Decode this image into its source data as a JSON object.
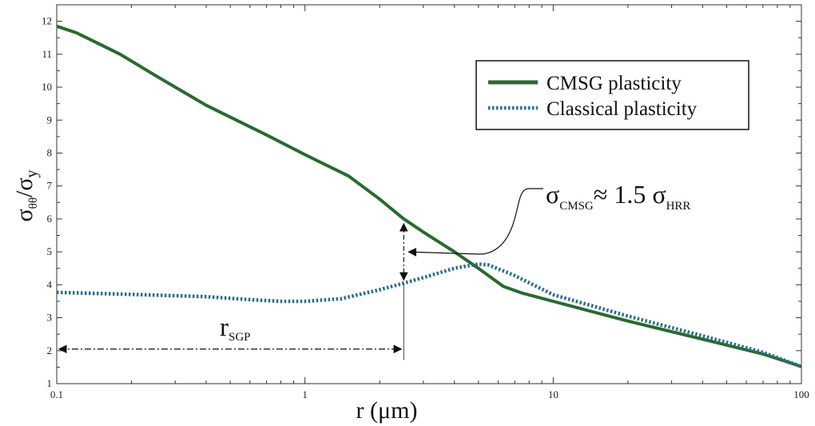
{
  "chart_data": {
    "type": "line",
    "xscale": "log",
    "xlim": [
      0.1,
      100
    ],
    "ylim": [
      1,
      12.5
    ],
    "xticks": [
      "0.1",
      "1",
      "10",
      "100"
    ],
    "yticks": [
      "1",
      "2",
      "3",
      "4",
      "5",
      "6",
      "7",
      "8",
      "9",
      "10",
      "11",
      "12"
    ],
    "xlabel": "r (μm)",
    "ylabel": {
      "main": "σ",
      "sub1": "θθ",
      "mid": "/σ",
      "sub2": "y"
    },
    "grid": false,
    "legend_position": "top-right",
    "series": [
      {
        "name": "CMSG plasticity",
        "style": "solid",
        "color": "#2a6a30",
        "x": [
          0.1,
          0.12,
          0.18,
          0.25,
          0.4,
          0.7,
          1.0,
          1.5,
          2.0,
          2.5,
          3.0,
          4.0,
          5.0,
          6.3,
          7.5,
          10,
          20,
          40,
          70,
          100
        ],
        "y": [
          11.85,
          11.65,
          11.0,
          10.35,
          9.45,
          8.55,
          7.95,
          7.3,
          6.6,
          6.0,
          5.6,
          5.0,
          4.5,
          3.95,
          3.75,
          3.5,
          2.9,
          2.35,
          1.9,
          1.52
        ]
      },
      {
        "name": "Classical plasticity",
        "style": "dotted",
        "color": "#2a6e8a",
        "x": [
          0.1,
          0.2,
          0.4,
          0.6,
          0.8,
          1.0,
          1.4,
          2.0,
          2.5,
          3.0,
          4.0,
          5.0,
          5.5,
          7.0,
          10,
          20,
          40,
          70,
          100
        ],
        "y": [
          3.77,
          3.71,
          3.64,
          3.55,
          3.5,
          3.5,
          3.58,
          3.85,
          4.05,
          4.22,
          4.5,
          4.63,
          4.6,
          4.28,
          3.7,
          3.05,
          2.45,
          1.95,
          1.52
        ]
      }
    ],
    "annotations": {
      "ratio": {
        "sigma": "σ",
        "sub1": "CMSG",
        "approx": "≈ 1.5 σ",
        "sub2": "HRR"
      },
      "rsgp": {
        "r": "r",
        "sub": "SGP"
      },
      "rsgp_value": 2.5,
      "gap_x": 2.5,
      "gap_y_top": 6.0,
      "gap_y_bottom": 4.05,
      "arrow_y": 2.05,
      "callout_target_y": 5.0
    }
  }
}
